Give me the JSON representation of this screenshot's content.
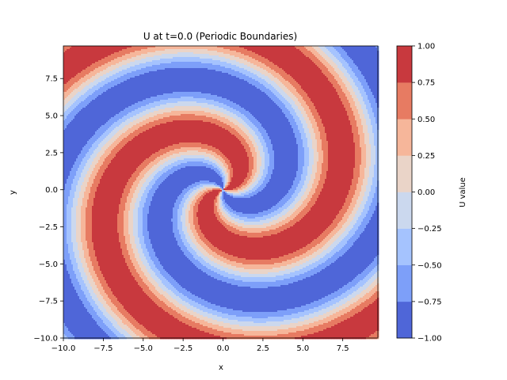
{
  "chart_data": {
    "type": "heatmap",
    "style": "filled-contour",
    "title": "U at t=0.0 (Periodic Boundaries)",
    "xlabel": "x",
    "ylabel": "y",
    "xlim": [
      -10.0,
      9.7
    ],
    "ylim": [
      -10.0,
      9.7
    ],
    "x_ticks": [
      "−10.0",
      "−7.5",
      "−5.0",
      "−2.5",
      "0.0",
      "2.5",
      "5.0",
      "7.5"
    ],
    "y_ticks": [
      "−10.0",
      "−7.5",
      "−5.0",
      "−2.5",
      "0.0",
      "2.5",
      "5.0",
      "7.5"
    ],
    "colorbar": {
      "label": "U value",
      "ticks": [
        "−1.00",
        "−0.75",
        "−0.50",
        "−0.25",
        "0.00",
        "0.25",
        "0.50",
        "0.75",
        "1.00"
      ],
      "levels": [
        -1.0,
        -0.75,
        -0.5,
        -0.25,
        0.0,
        0.25,
        0.5,
        0.75,
        1.0
      ],
      "colors": [
        "#4f66d8",
        "#7d9ff9",
        "#a5c3fe",
        "#cbd8ee",
        "#ead4c8",
        "#f6b69a",
        "#e77b62",
        "#c8393e"
      ],
      "colormap": "coolwarm"
    },
    "field": {
      "description_of_pattern": "two-armed spiral",
      "value_range": [
        -1.0,
        1.0
      ],
      "spiral_center": [
        0.0,
        0.0
      ],
      "arms": 2,
      "radial_period": 7.5
    }
  }
}
